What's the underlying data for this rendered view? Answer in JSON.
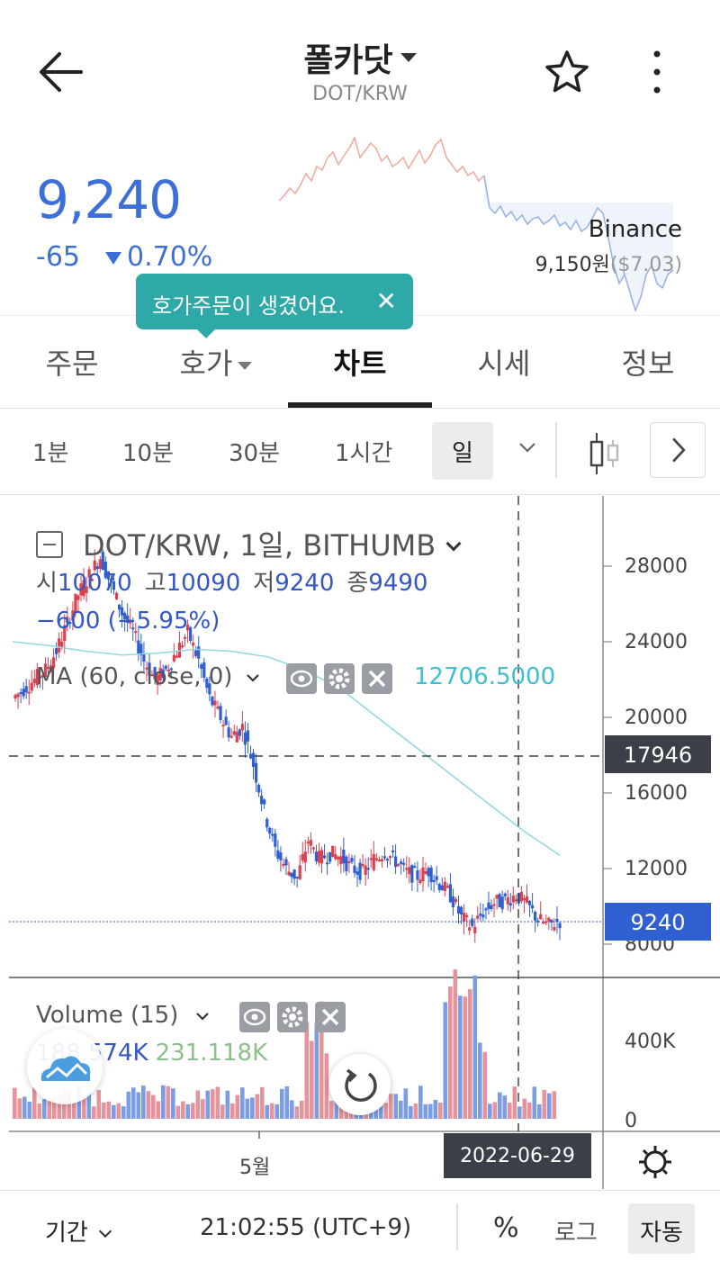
{
  "header": {
    "title": "폴카닷",
    "pair": "DOT/KRW"
  },
  "price": {
    "current": "9,240",
    "change": "-65",
    "change_pct": "0.70%",
    "exchange_name": "Binance",
    "exchange_price": "9,150원",
    "exchange_usd": "($7.03)"
  },
  "tooltip": {
    "text": "호가주문이 생겼어요.",
    "close": "✕"
  },
  "tabs": [
    {
      "label": "주문"
    },
    {
      "label": "호가"
    },
    {
      "label": "차트"
    },
    {
      "label": "시세"
    },
    {
      "label": "정보"
    }
  ],
  "intervals": [
    {
      "label": "1분"
    },
    {
      "label": "10분"
    },
    {
      "label": "30분"
    },
    {
      "label": "1시간"
    },
    {
      "label": "일"
    }
  ],
  "chart": {
    "legend_title": "DOT/KRW, 1일, BITHUMB",
    "ohlc": {
      "o_label": "시",
      "o": "10070",
      "h_label": "고",
      "h": "10090",
      "l_label": "저",
      "l": "9240",
      "c_label": "종",
      "c": "9490"
    },
    "ohlc_change": "−600 (−5.95%)",
    "ma_label": "MA (60, close, 0)",
    "ma_value": "12706.5000",
    "volume_label": "Volume (15)",
    "volume_value_1": "188.574K",
    "volume_value_2": "231.118K",
    "price_axis": [
      "28000",
      "24000",
      "20000",
      "16000",
      "12000",
      "8000"
    ],
    "volume_axis": [
      "400K",
      "0"
    ],
    "crosshair_price": "17946",
    "last_price_tag": "9240",
    "date_tag": "2022-06-29",
    "month_label": "5월",
    "colors": {
      "up": "#d9424f",
      "down": "#2f5fd0",
      "ma": "#8fd8e0",
      "vol_up": "#e5949c",
      "vol_down": "#7a9de6"
    }
  },
  "chart_data": {
    "type": "candlestick",
    "ylim": [
      7000,
      30000
    ],
    "price_ticks": [
      8000,
      12000,
      16000,
      20000,
      24000,
      28000
    ],
    "close_series": [
      21000,
      21500,
      22000,
      22500,
      23500,
      25000,
      26500,
      27500,
      28500,
      27000,
      25500,
      24500,
      23000,
      22000,
      22500,
      23500,
      24500,
      23000,
      21000,
      20000,
      19000,
      19500,
      17500,
      15000,
      13000,
      12000,
      11500,
      13500,
      12500,
      12800,
      12600,
      12000,
      11800,
      12500,
      12900,
      12400,
      11800,
      11600,
      11900,
      11200,
      10600,
      9400,
      8900,
      9700,
      10200,
      10300,
      10600,
      10100,
      9300,
      9000,
      9240
    ],
    "ma_series": [
      24000,
      23800,
      23500,
      23300,
      23400,
      23600,
      23500,
      23200,
      22500,
      21500,
      20000,
      18500,
      17000,
      15500,
      14000,
      12700
    ],
    "volume_ylim": [
      0,
      500000
    ],
    "volume_ticks": [
      0,
      400000
    ],
    "crosshair_price": 17946,
    "last_price": 9240
  },
  "footer": {
    "period": "기간",
    "time": "21:02:55 (UTC+9)",
    "percent": "%",
    "log": "로그",
    "auto": "자동"
  }
}
